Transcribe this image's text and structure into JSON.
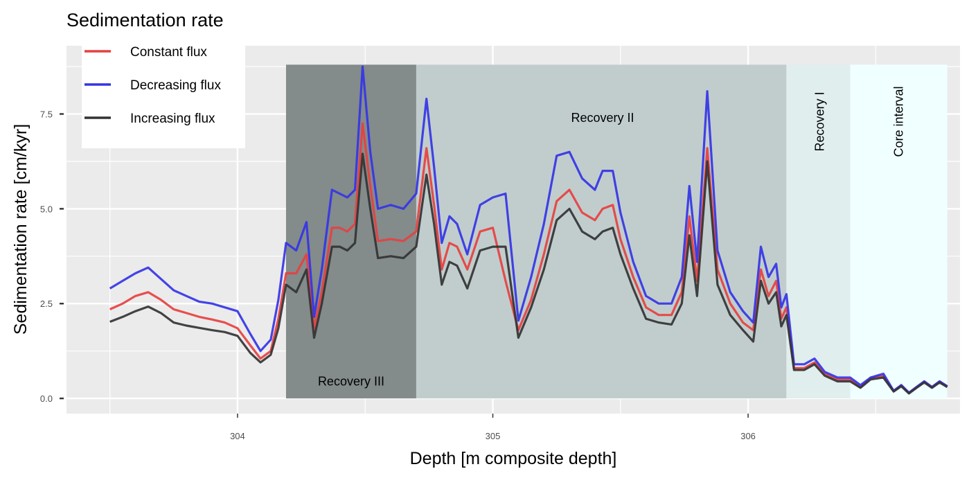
{
  "chart_data": {
    "type": "line",
    "title": "Sedimentation rate",
    "xlabel": "Depth [m composite depth]",
    "ylabel": "Sedimentation rate [cm/kyr]",
    "xlim": [
      303.33,
      306.83
    ],
    "ylim": [
      -0.4,
      9.3
    ],
    "x_ticks": [
      304,
      305,
      306
    ],
    "x_tick_labels": [
      "304",
      "305",
      "306"
    ],
    "y_ticks": [
      0,
      2.5,
      5,
      7.5
    ],
    "y_tick_labels": [
      "0.0",
      "2.5",
      "5.0",
      "7.5"
    ],
    "grid": true,
    "legend": {
      "position": "top-left"
    },
    "intervals": [
      {
        "label": "Recovery III",
        "x0": 304.19,
        "x1": 304.7,
        "y0": 0,
        "y1": 8.8,
        "color": "#838b8b",
        "label_x": 304.445,
        "label_y": 0.45,
        "rotate": false
      },
      {
        "label": "Recovery II",
        "x0": 304.7,
        "x1": 306.15,
        "y0": 0,
        "y1": 8.8,
        "color": "#c1cdcd",
        "label_x": 305.43,
        "label_y": 7.4,
        "rotate": false
      },
      {
        "label": "Recovery I",
        "x0": 306.15,
        "x1": 306.4,
        "y0": 0,
        "y1": 8.8,
        "color": "#e0eeee",
        "label_x": 306.28,
        "label_y": 7.3,
        "rotate": true
      },
      {
        "label": "Core interval",
        "x0": 306.4,
        "x1": 306.78,
        "y0": 0,
        "y1": 8.8,
        "color": "#f0ffff",
        "label_x": 306.59,
        "label_y": 7.3,
        "rotate": true
      }
    ],
    "x": [
      303.5,
      303.55,
      303.6,
      303.65,
      303.7,
      303.75,
      303.8,
      303.85,
      303.9,
      303.95,
      304.0,
      304.05,
      304.09,
      304.13,
      304.16,
      304.19,
      304.23,
      304.27,
      304.3,
      304.33,
      304.37,
      304.4,
      304.43,
      304.46,
      304.49,
      304.52,
      304.55,
      304.6,
      304.65,
      304.7,
      304.74,
      304.77,
      304.8,
      304.83,
      304.86,
      304.9,
      304.95,
      305.0,
      305.05,
      305.1,
      305.15,
      305.2,
      305.25,
      305.3,
      305.35,
      305.4,
      305.43,
      305.47,
      305.5,
      305.55,
      305.6,
      305.65,
      305.7,
      305.74,
      305.77,
      305.8,
      305.84,
      305.88,
      305.93,
      305.98,
      306.02,
      306.05,
      306.08,
      306.11,
      306.13,
      306.15,
      306.18,
      306.22,
      306.26,
      306.3,
      306.35,
      306.4,
      306.44,
      306.48,
      306.53,
      306.57,
      306.6,
      306.63,
      306.66,
      306.69,
      306.72,
      306.75,
      306.78
    ],
    "series": [
      {
        "name": "Constant flux",
        "color": "#e74040",
        "values": [
          2.35,
          2.5,
          2.7,
          2.8,
          2.6,
          2.35,
          2.25,
          2.15,
          2.08,
          2.0,
          1.85,
          1.4,
          1.05,
          1.25,
          2.1,
          3.3,
          3.3,
          3.8,
          1.85,
          2.8,
          4.5,
          4.5,
          4.4,
          4.6,
          7.25,
          5.6,
          4.15,
          4.2,
          4.15,
          4.4,
          6.6,
          5.1,
          3.4,
          4.1,
          4.0,
          3.4,
          4.4,
          4.5,
          3.1,
          1.8,
          2.6,
          3.8,
          5.2,
          5.5,
          4.9,
          4.7,
          5.0,
          5.1,
          4.2,
          3.2,
          2.4,
          2.2,
          2.2,
          2.8,
          4.8,
          3.1,
          6.6,
          3.4,
          2.5,
          2.0,
          1.8,
          3.4,
          2.7,
          3.1,
          2.1,
          2.4,
          0.8,
          0.8,
          0.95,
          0.65,
          0.5,
          0.5,
          0.3,
          0.55,
          0.6,
          0.2,
          0.35,
          0.15,
          0.3,
          0.45,
          0.3,
          0.45,
          0.32
        ]
      },
      {
        "name": "Decreasing flux",
        "color": "#3434e6",
        "values": [
          2.9,
          3.1,
          3.3,
          3.45,
          3.15,
          2.85,
          2.7,
          2.55,
          2.5,
          2.4,
          2.3,
          1.7,
          1.25,
          1.55,
          2.6,
          4.1,
          3.9,
          4.65,
          2.15,
          3.4,
          5.5,
          5.4,
          5.3,
          5.5,
          8.75,
          6.5,
          5.0,
          5.1,
          5.0,
          5.4,
          7.9,
          6.1,
          4.1,
          4.8,
          4.6,
          3.8,
          5.1,
          5.3,
          5.4,
          2.05,
          3.2,
          4.6,
          6.4,
          6.5,
          5.8,
          5.5,
          6.0,
          6.0,
          4.9,
          3.6,
          2.7,
          2.5,
          2.5,
          3.2,
          5.6,
          3.6,
          8.1,
          3.9,
          2.8,
          2.3,
          2.0,
          4.0,
          3.2,
          3.55,
          2.4,
          2.75,
          0.9,
          0.9,
          1.05,
          0.7,
          0.55,
          0.55,
          0.35,
          0.55,
          0.65,
          0.2,
          0.35,
          0.15,
          0.3,
          0.45,
          0.3,
          0.45,
          0.32
        ]
      },
      {
        "name": "Increasing flux",
        "color": "#333333",
        "values": [
          2.02,
          2.15,
          2.3,
          2.42,
          2.25,
          2.0,
          1.92,
          1.86,
          1.8,
          1.75,
          1.65,
          1.2,
          0.95,
          1.15,
          1.85,
          3.0,
          2.8,
          3.4,
          1.6,
          2.5,
          4.0,
          4.0,
          3.9,
          4.1,
          6.45,
          5.0,
          3.7,
          3.75,
          3.7,
          4.0,
          5.9,
          4.6,
          3.0,
          3.6,
          3.5,
          2.9,
          3.9,
          4.0,
          4.0,
          1.6,
          2.4,
          3.4,
          4.7,
          5.0,
          4.4,
          4.2,
          4.4,
          4.5,
          3.8,
          2.9,
          2.1,
          2.0,
          1.95,
          2.5,
          4.3,
          2.7,
          6.25,
          3.0,
          2.2,
          1.8,
          1.5,
          3.1,
          2.5,
          2.8,
          1.9,
          2.2,
          0.75,
          0.75,
          0.9,
          0.6,
          0.45,
          0.45,
          0.28,
          0.5,
          0.55,
          0.18,
          0.32,
          0.13,
          0.28,
          0.42,
          0.28,
          0.42,
          0.3
        ]
      }
    ]
  }
}
